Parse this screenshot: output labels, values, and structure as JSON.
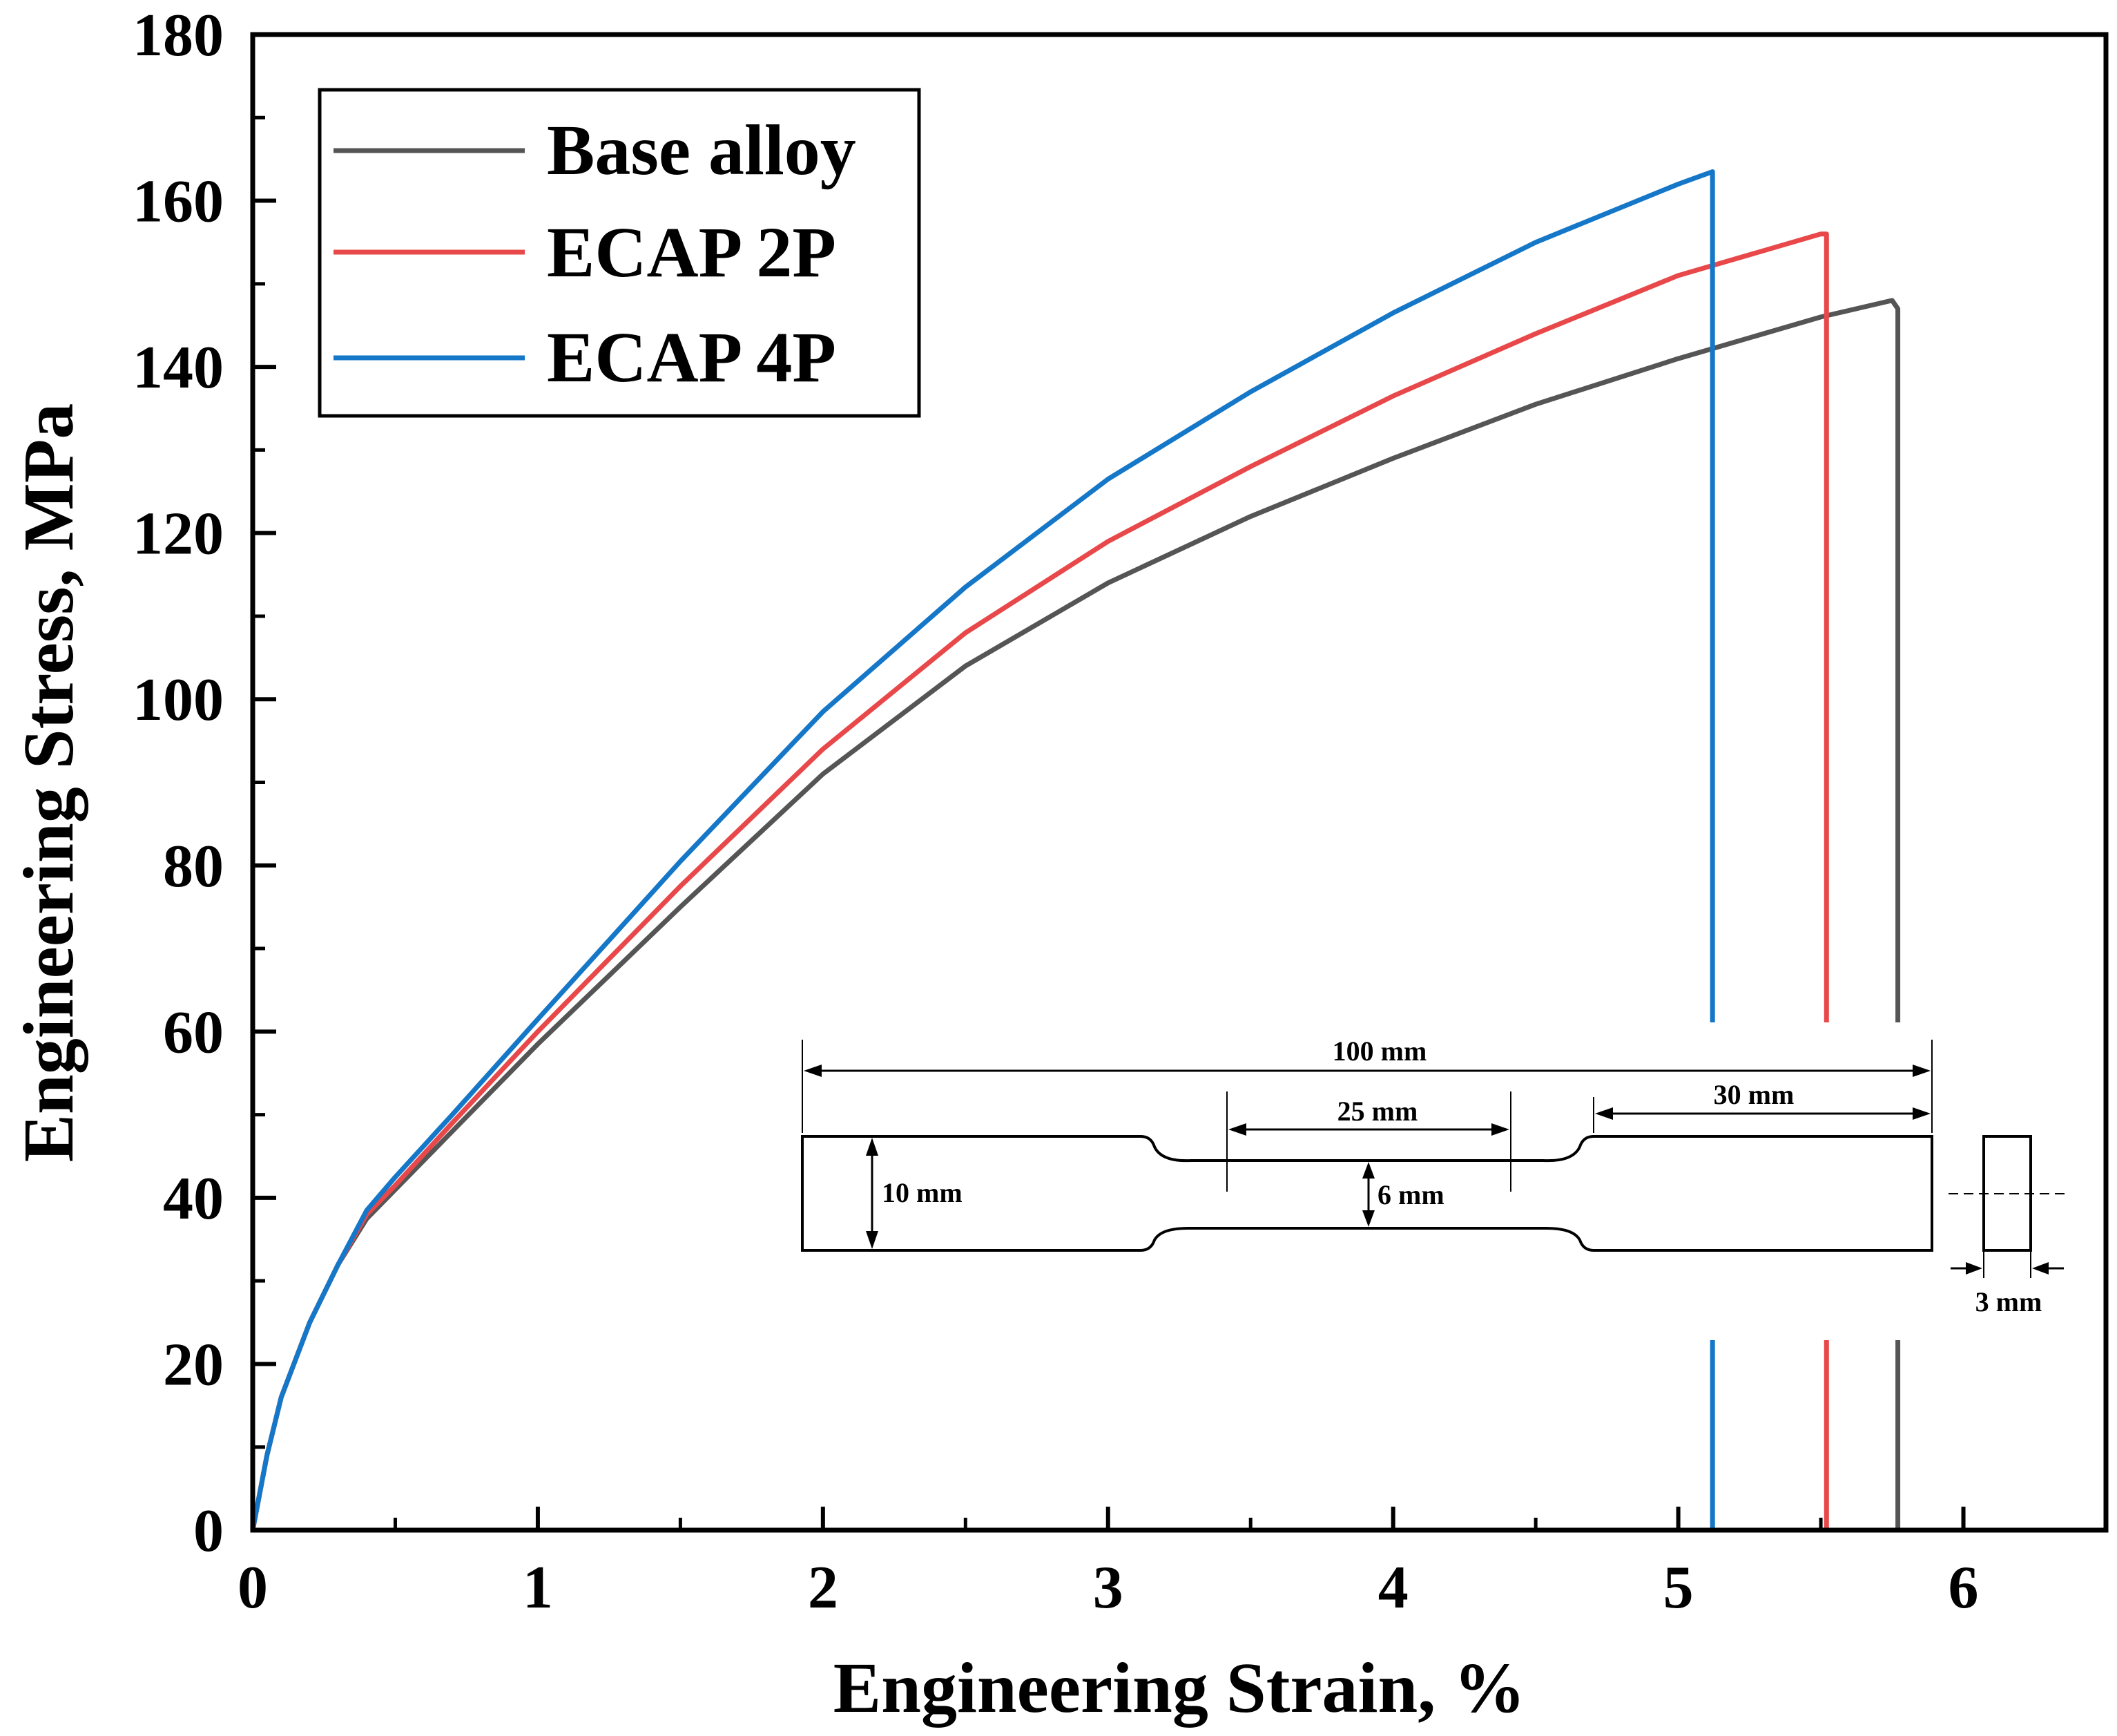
{
  "chart_data": {
    "type": "line",
    "xlabel": "Engineering Strain, %",
    "ylabel": "Engineering Stress, MPa",
    "xlim": [
      0,
      6.5
    ],
    "ylim": [
      0,
      180
    ],
    "x_major_ticks": [
      0,
      1,
      2,
      3,
      4,
      5,
      6
    ],
    "x_tick_labels": [
      "0",
      "1",
      "2",
      "3",
      "4",
      "5",
      "6"
    ],
    "y_major_ticks": [
      0,
      20,
      40,
      60,
      80,
      100,
      120,
      140,
      160,
      180
    ],
    "y_tick_labels": [
      "0",
      "20",
      "40",
      "60",
      "80",
      "100",
      "120",
      "140",
      "160",
      "180"
    ],
    "legend_position": "top-left",
    "grid": false,
    "series": [
      {
        "name": "Base alloy",
        "color": "#555555",
        "x": [
          0,
          0.05,
          0.1,
          0.2,
          0.3,
          0.4,
          0.5,
          0.7,
          1.0,
          1.5,
          2.0,
          2.5,
          3.0,
          3.5,
          4.0,
          4.5,
          5.0,
          5.5,
          5.75,
          5.77,
          5.77
        ],
        "y": [
          0,
          9,
          16,
          25,
          32,
          37.5,
          41,
          48,
          58.5,
          75,
          91,
          104,
          114,
          122,
          129,
          135.5,
          141,
          146,
          148,
          147,
          0
        ]
      },
      {
        "name": "ECAP 2P",
        "color": "#e8484a",
        "x": [
          0,
          0.05,
          0.1,
          0.2,
          0.3,
          0.4,
          0.5,
          0.7,
          1.0,
          1.5,
          2.0,
          2.5,
          3.0,
          3.5,
          4.0,
          4.5,
          5.0,
          5.5,
          5.52,
          5.52
        ],
        "y": [
          0,
          9,
          16,
          25,
          32,
          38,
          41.5,
          49,
          60,
          77.5,
          94,
          108,
          119,
          128,
          136.5,
          144,
          151,
          156,
          156,
          0
        ]
      },
      {
        "name": "ECAP 4P",
        "color": "#1577c8",
        "x": [
          0,
          0.05,
          0.1,
          0.2,
          0.3,
          0.4,
          0.5,
          0.7,
          1.0,
          1.5,
          2.0,
          2.5,
          3.0,
          3.5,
          4.0,
          4.5,
          5.0,
          5.12,
          5.12
        ],
        "y": [
          0,
          9,
          16,
          25,
          32,
          38.5,
          42.5,
          50,
          61.5,
          80.5,
          98.5,
          113.5,
          126.5,
          137,
          146.5,
          155,
          162,
          163.5,
          0
        ]
      }
    ],
    "inset_specimen_drawing": {
      "total_length": "100 mm",
      "gauge_length": "25 mm",
      "grip_length": "30 mm",
      "grip_width": "10 mm",
      "gauge_width": "6 mm",
      "thickness": "3 mm"
    }
  }
}
